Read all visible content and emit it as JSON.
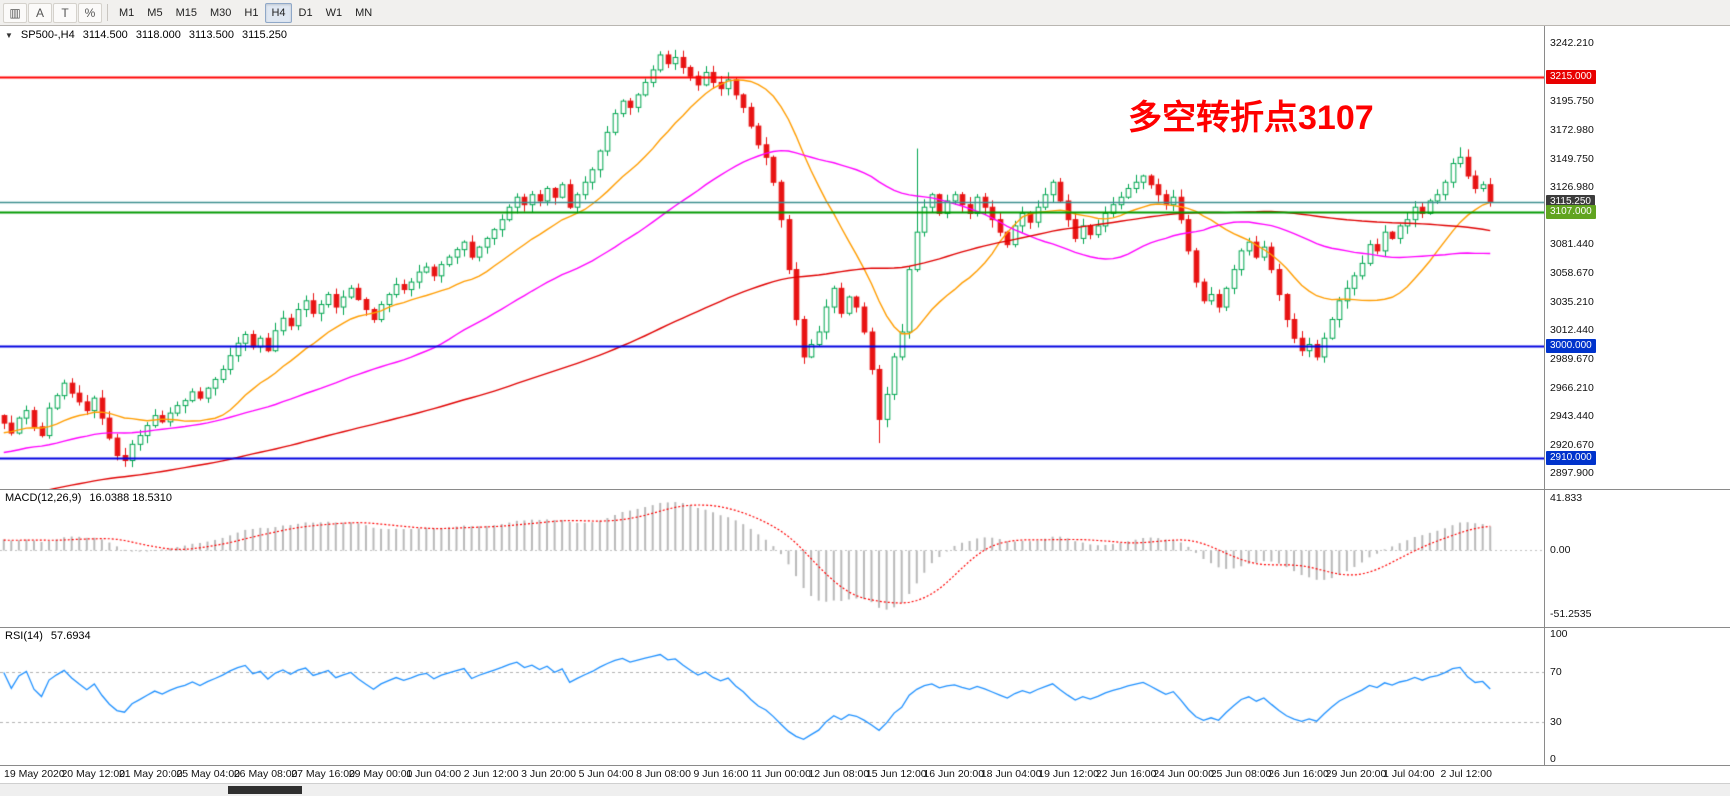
{
  "toolbar": {
    "icons": [
      {
        "name": "charts-grid-icon",
        "glyph": "▥"
      },
      {
        "name": "auto-scroll-button",
        "glyph": "A"
      },
      {
        "name": "chart-shift-button",
        "glyph": "T"
      },
      {
        "name": "zigzag-indicator-icon",
        "glyph": "%"
      }
    ],
    "timeframes": [
      {
        "label": "M1"
      },
      {
        "label": "M5"
      },
      {
        "label": "M15"
      },
      {
        "label": "M30"
      },
      {
        "label": "H1"
      },
      {
        "label": "H4"
      },
      {
        "label": "D1"
      },
      {
        "label": "W1"
      },
      {
        "label": "MN"
      }
    ],
    "active_timeframe": "H4"
  },
  "header": {
    "collapse_glyph": "▼",
    "symbol": "SP500-,H4",
    "open": "3114.500",
    "high": "3118.000",
    "low": "3113.500",
    "close": "3115.250"
  },
  "annotation": {
    "text": "多空转折点3107",
    "color": "#ff0000"
  },
  "main_axis": {
    "range": [
      2890,
      3253
    ],
    "ticks": [
      3242.21,
      3195.75,
      3172.98,
      3149.75,
      3126.98,
      3081.44,
      3058.67,
      3035.21,
      3012.44,
      2989.67,
      2966.21,
      2943.44,
      2920.67,
      2897.9
    ]
  },
  "key_levels": [
    {
      "price": 3215.0,
      "label": "3215.000",
      "line_color": "#ff0000",
      "label_bg": "#e80000",
      "width": 2,
      "style": "solid"
    },
    {
      "price": 3115.25,
      "label": "3115.250",
      "line_color": "#3d8f8f",
      "label_bg": "#3c3c3c",
      "width": 1.3,
      "style": "solid"
    },
    {
      "price": 3107.0,
      "label": "3107.000",
      "line_color": "#009900",
      "label_bg": "#61a420",
      "width": 2,
      "style": "solid"
    },
    {
      "price": 3000.0,
      "label": "3000.000",
      "line_color": "#0000e0",
      "label_bg": "#0033cc",
      "width": 2,
      "style": "solid"
    },
    {
      "price": 2910.0,
      "label": "2910.000",
      "line_color": "#0000e0",
      "label_bg": "#0033cc",
      "width": 2,
      "style": "solid"
    }
  ],
  "chart_data": {
    "type": "candlestick",
    "symbol": "SP500-",
    "period": "H4",
    "up_color": "#00a650",
    "down_color": "#e81212",
    "x_labels": [
      "19 May 2020",
      "20 May 12:00",
      "21 May 20:00",
      "25 May 04:00",
      "26 May 08:00",
      "27 May 16:00",
      "29 May 00:00",
      "1 Jun 04:00",
      "2 Jun 12:00",
      "3 Jun 20:00",
      "5 Jun 04:00",
      "8 Jun 08:00",
      "9 Jun 16:00",
      "11 Jun 00:00",
      "12 Jun 08:00",
      "15 Jun 12:00",
      "16 Jun 20:00",
      "18 Jun 04:00",
      "19 Jun 12:00",
      "22 Jun 16:00",
      "24 Jun 00:00",
      "25 Jun 08:00",
      "26 Jun 16:00",
      "29 Jun 20:00",
      "1 Jul 04:00",
      "2 Jul 12:00"
    ],
    "closes": [
      2938,
      2930,
      2942,
      2948,
      2935,
      2928,
      2950,
      2960,
      2970,
      2962,
      2955,
      2948,
      2958,
      2942,
      2926,
      2912,
      2908,
      2921,
      2928,
      2936,
      2944,
      2939,
      2946,
      2952,
      2956,
      2963,
      2958,
      2966,
      2973,
      2981,
      2992,
      3002,
      3009,
      2999,
      3006,
      2996,
      3012,
      3022,
      3016,
      3029,
      3036,
      3026,
      3033,
      3041,
      3031,
      3039,
      3046,
      3037,
      3029,
      3021,
      3033,
      3041,
      3049,
      3045,
      3051,
      3059,
      3063,
      3056,
      3065,
      3071,
      3077,
      3083,
      3071,
      3079,
      3086,
      3093,
      3101,
      3111,
      3119,
      3113,
      3121,
      3116,
      3126,
      3119,
      3129,
      3111,
      3121,
      3131,
      3141,
      3156,
      3171,
      3186,
      3196,
      3191,
      3201,
      3211,
      3221,
      3233,
      3226,
      3231,
      3223,
      3216,
      3209,
      3219,
      3211,
      3206,
      3213,
      3201,
      3191,
      3176,
      3161,
      3151,
      3131,
      3101,
      3061,
      3021,
      2991,
      3001,
      3011,
      3031,
      3046,
      3026,
      3039,
      3031,
      3011,
      2981,
      2941,
      2961,
      2991,
      3011,
      3061,
      3091,
      3111,
      3121,
      3106,
      3116,
      3121,
      3113,
      3106,
      3119,
      3111,
      3101,
      3091,
      3081,
      3096,
      3106,
      3099,
      3111,
      3121,
      3131,
      3116,
      3101,
      3086,
      3096,
      3089,
      3096,
      3106,
      3113,
      3119,
      3126,
      3131,
      3136,
      3129,
      3121,
      3113,
      3119,
      3101,
      3076,
      3051,
      3036,
      3041,
      3031,
      3046,
      3061,
      3076,
      3083,
      3071,
      3079,
      3061,
      3041,
      3021,
      3006,
      2996,
      3001,
      2991,
      3006,
      3021,
      3036,
      3046,
      3056,
      3066,
      3081,
      3076,
      3091,
      3086,
      3096,
      3101,
      3111,
      3106,
      3116,
      3121,
      3131,
      3146,
      3151,
      3136,
      3126,
      3129,
      3115.25
    ],
    "wick_overrides": {
      "116": {
        "low": 2922
      },
      "121": {
        "high": 3158
      },
      "193": {
        "high": 3159
      }
    },
    "moving_averages": [
      {
        "name": "fast-ma",
        "period": 16,
        "color": "#ff9d00"
      },
      {
        "name": "medium-ma",
        "period": 44,
        "color": "#ff00ff"
      },
      {
        "name": "slow-ma",
        "period": 110,
        "color": "#e00000"
      }
    ],
    "indicators": {
      "macd": {
        "label": "MACD(12,26,9)",
        "values_text": "16.0388 18.5310",
        "fast": 12,
        "slow": 26,
        "signal": 9,
        "range": [
          -58,
          44
        ],
        "axis_ticks": [
          {
            "v": 41.833,
            "t": "41.833"
          },
          {
            "v": 0,
            "t": "0.00"
          },
          {
            "v": -51.2535,
            "t": "-51.2535"
          }
        ],
        "histogram_color": "#b9b9b9",
        "signal_color": "#ff0000"
      },
      "rsi": {
        "label": "RSI(14)",
        "value_text": "57.6934",
        "period": 14,
        "range": [
          0,
          100
        ],
        "levels": [
          70,
          30
        ],
        "axis_ticks": [
          {
            "v": 100,
            "t": "100"
          },
          {
            "v": 70,
            "t": "70"
          },
          {
            "v": 30,
            "t": "30"
          },
          {
            "v": 0,
            "t": "0"
          }
        ],
        "line_color": "#1e90ff"
      }
    }
  },
  "time_axis": {
    "labels": [
      "19 May 2020",
      "20 May 12:00",
      "21 May 20:00",
      "25 May 04:00",
      "26 May 08:00",
      "27 May 16:00",
      "29 May 00:00",
      "1 Jun 04:00",
      "2 Jun 12:00",
      "3 Jun 20:00",
      "5 Jun 04:00",
      "8 Jun 08:00",
      "9 Jun 16:00",
      "11 Jun 00:00",
      "12 Jun 08:00",
      "15 Jun 12:00",
      "16 Jun 20:00",
      "18 Jun 04:00",
      "19 Jun 12:00",
      "22 Jun 16:00",
      "24 Jun 00:00",
      "25 Jun 08:00",
      "26 Jun 16:00",
      "29 Jun 20:00",
      "1 Jul 04:00",
      "2 Jul 12:00"
    ]
  }
}
